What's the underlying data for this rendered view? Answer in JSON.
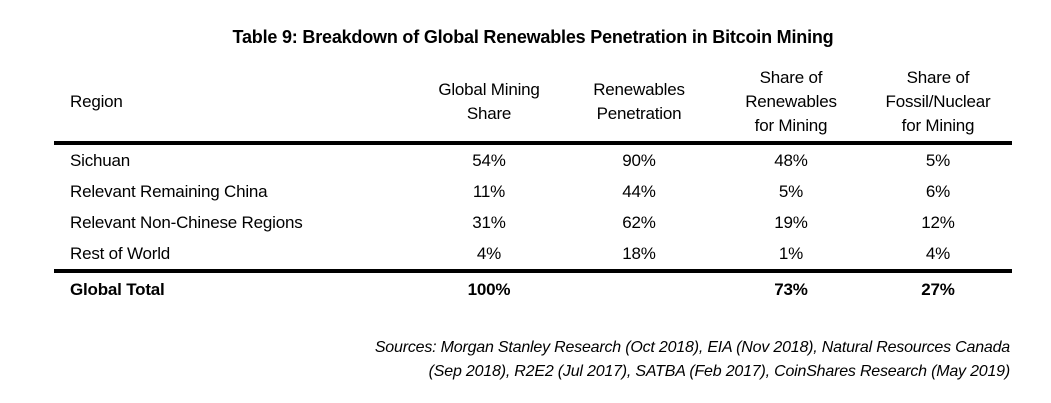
{
  "title": "Table 9: Breakdown of Global Renewables Penetration in Bitcoin Mining",
  "table": {
    "headers": [
      "Region",
      "Global Mining\nShare",
      "Renewables\nPenetration",
      "Share of\nRenewables\nfor Mining",
      "Share of\nFossil/Nuclear\nfor Mining"
    ],
    "rows": [
      {
        "region": "Sichuan",
        "global_mining_share": "54%",
        "renewables_penetration": "90%",
        "share_renewables": "48%",
        "share_fossil": "5%"
      },
      {
        "region": "Relevant Remaining China",
        "global_mining_share": "11%",
        "renewables_penetration": "44%",
        "share_renewables": "5%",
        "share_fossil": "6%"
      },
      {
        "region": "Relevant Non-Chinese Regions",
        "global_mining_share": "31%",
        "renewables_penetration": "62%",
        "share_renewables": "19%",
        "share_fossil": "12%"
      },
      {
        "region": "Rest of World",
        "global_mining_share": "4%",
        "renewables_penetration": "18%",
        "share_renewables": "1%",
        "share_fossil": "4%"
      }
    ],
    "total": {
      "region": "Global Total",
      "global_mining_share": "100%",
      "renewables_penetration": "",
      "share_renewables": "73%",
      "share_fossil": "27%"
    }
  },
  "sources": {
    "line1": "Sources: Morgan Stanley Research (Oct 2018), EIA (Nov 2018), Natural Resources Canada",
    "line2": "(Sep 2018), R2E2 (Jul 2017), SATBA (Feb 2017), CoinShares Research (May 2019)"
  },
  "colors": {
    "text": "#000000",
    "rule": "#000000",
    "background": "#ffffff"
  },
  "chart_data": {
    "type": "table",
    "title": "Table 9: Breakdown of Global Renewables Penetration in Bitcoin Mining",
    "columns": [
      "Region",
      "Global Mining Share",
      "Renewables Penetration",
      "Share of Renewables for Mining",
      "Share of Fossil/Nuclear for Mining"
    ],
    "units": "percent",
    "rows": [
      {
        "region": "Sichuan",
        "global_mining_share": 54,
        "renewables_penetration": 90,
        "share_of_renewables_for_mining": 48,
        "share_of_fossil_nuclear_for_mining": 5
      },
      {
        "region": "Relevant Remaining China",
        "global_mining_share": 11,
        "renewables_penetration": 44,
        "share_of_renewables_for_mining": 5,
        "share_of_fossil_nuclear_for_mining": 6
      },
      {
        "region": "Relevant Non-Chinese Regions",
        "global_mining_share": 31,
        "renewables_penetration": 62,
        "share_of_renewables_for_mining": 19,
        "share_of_fossil_nuclear_for_mining": 12
      },
      {
        "region": "Rest of World",
        "global_mining_share": 4,
        "renewables_penetration": 18,
        "share_of_renewables_for_mining": 1,
        "share_of_fossil_nuclear_for_mining": 4
      }
    ],
    "total_row": {
      "region": "Global Total",
      "global_mining_share": 100,
      "renewables_penetration": null,
      "share_of_renewables_for_mining": 73,
      "share_of_fossil_nuclear_for_mining": 27
    },
    "source_note": "Sources: Morgan Stanley Research (Oct 2018), EIA (Nov 2018), Natural Resources Canada (Sep 2018), R2E2 (Jul 2017), SATBA (Feb 2017), CoinShares Research (May 2019)"
  }
}
